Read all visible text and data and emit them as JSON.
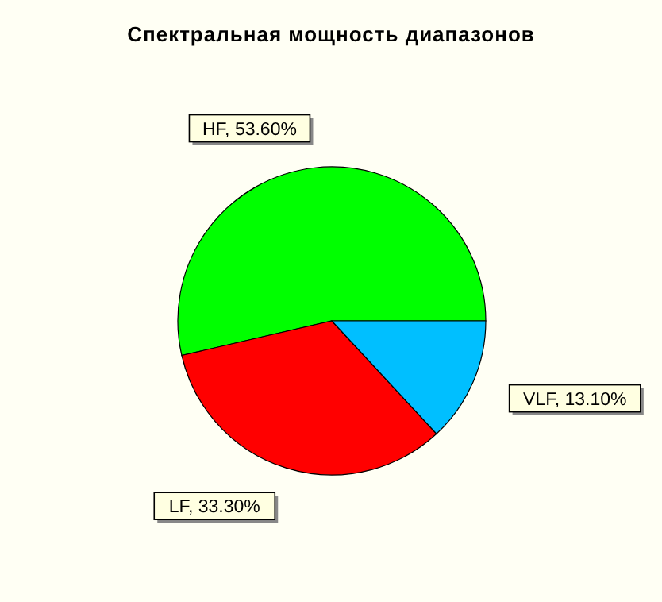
{
  "chart_data": {
    "type": "pie",
    "title": "Спектральная мощность диапазонов",
    "categories": [
      "HF",
      "LF",
      "VLF"
    ],
    "values": [
      53.6,
      33.3,
      13.1
    ],
    "colors": [
      "#00ff00",
      "#ff0000",
      "#00bfff"
    ],
    "value_labels": [
      "53.60%",
      "33.30%",
      "13.10%"
    ],
    "legend": false
  }
}
